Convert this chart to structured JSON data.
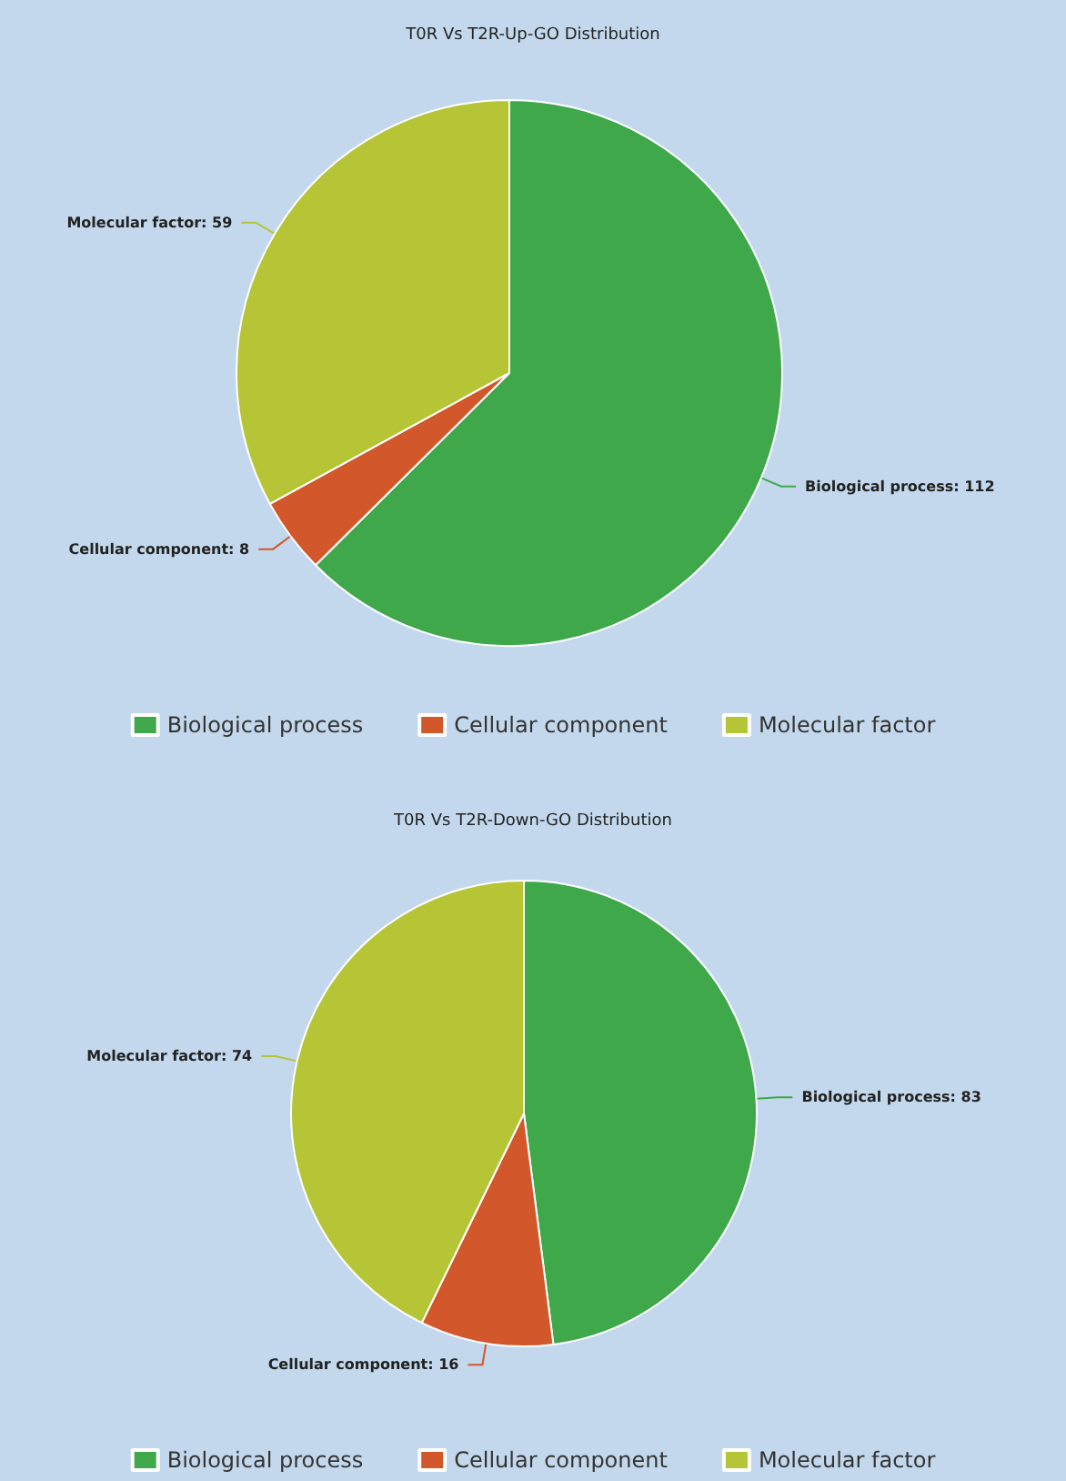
{
  "chart_data": [
    {
      "type": "pie",
      "title": "T0R Vs T2R-Up-GO Distribution",
      "categories": [
        "Biological process",
        "Cellular component",
        "Molecular factor"
      ],
      "values": [
        112,
        8,
        59
      ],
      "value_labels": [
        "Biological process: 112",
        "Cellular component: 8",
        "Molecular factor: 59"
      ],
      "colors": [
        "#3fa84a",
        "#d2572a",
        "#b5c535"
      ],
      "legend": "bottom"
    },
    {
      "type": "pie",
      "title": "T0R Vs T2R-Down-GO Distribution",
      "categories": [
        "Biological process",
        "Cellular component",
        "Molecular factor"
      ],
      "values": [
        83,
        16,
        74
      ],
      "value_labels": [
        "Biological process: 83",
        "Cellular component: 16",
        "Molecular factor: 74"
      ],
      "colors": [
        "#3fa84a",
        "#d2572a",
        "#b5c535"
      ],
      "legend": "bottom"
    }
  ]
}
